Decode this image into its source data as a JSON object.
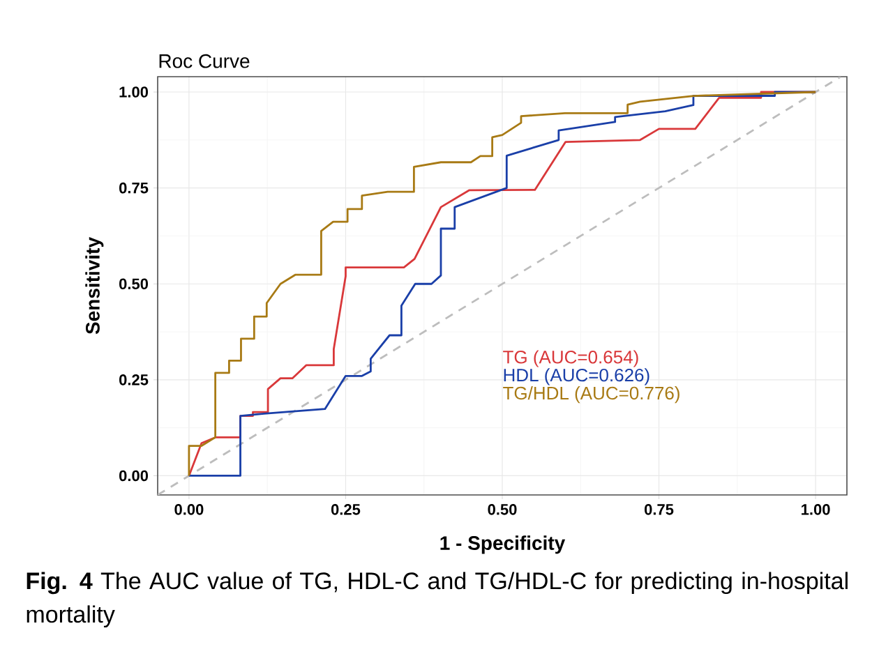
{
  "chart_data": {
    "type": "line",
    "title": "Roc Curve",
    "xlabel": "1 - Specificity",
    "ylabel": "Sensitivity",
    "annotations": [
      "**Fig. 4**  The AUC value of TG, HDL-C and TG/HDL-C for predicting in-hospital mortality"
    ],
    "xlim": [
      -0.05,
      1.05
    ],
    "ylim": [
      -0.05,
      1.04
    ],
    "xticks": [
      {
        "value": 0,
        "label": "0.00"
      },
      {
        "value": 0.25,
        "label": "0.25"
      },
      {
        "value": 0.5,
        "label": "0.50"
      },
      {
        "value": 0.75,
        "label": "0.75"
      },
      {
        "value": 1,
        "label": "1.00"
      }
    ],
    "yticks": [
      {
        "value": 0,
        "label": "0.00"
      },
      {
        "value": 0.25,
        "label": "0.25"
      },
      {
        "value": 0.5,
        "label": "0.50"
      },
      {
        "value": 0.75,
        "label": "0.75"
      },
      {
        "value": 1,
        "label": "1.00"
      }
    ],
    "grid": true,
    "legend": "bottom right",
    "series": [
      {
        "color": "#bdbdbd",
        "line_style": "dashed",
        "x": [
          -0.05,
          1.04
        ],
        "values": [
          -0.05,
          1.04
        ]
      },
      {
        "name": "TG (AUC=0.654)",
        "color": "#d9383a",
        "x": [
          0,
          0.02,
          0.042,
          0.082,
          0.082,
          0.102,
          0.102,
          0.126,
          0.126,
          0.146,
          0.165,
          0.187,
          0.231,
          0.231,
          0.25,
          0.25,
          0.343,
          0.36,
          0.402,
          0.447,
          0.552,
          0.601,
          0.72,
          0.75,
          0.808,
          0.846,
          0.913,
          0.913,
          1
        ],
        "values": [
          0,
          0.085,
          0.1,
          0.1,
          0.156,
          0.156,
          0.166,
          0.166,
          0.226,
          0.254,
          0.254,
          0.288,
          0.288,
          0.33,
          0.52,
          0.543,
          0.543,
          0.565,
          0.7,
          0.744,
          0.745,
          0.87,
          0.875,
          0.904,
          0.904,
          0.985,
          0.985,
          1,
          1
        ]
      },
      {
        "name": "HDL (AUC=0.626)",
        "color": "#1a3fa8",
        "x": [
          0,
          0.082,
          0.082,
          0.12,
          0.217,
          0.25,
          0.276,
          0.29,
          0.29,
          0.32,
          0.339,
          0.339,
          0.361,
          0.387,
          0.402,
          0.402,
          0.424,
          0.424,
          0.507,
          0.507,
          0.59,
          0.59,
          0.68,
          0.68,
          0.76,
          0.805,
          0.805,
          0.935,
          0.935,
          1
        ],
        "values": [
          0,
          0,
          0.156,
          0.162,
          0.174,
          0.26,
          0.26,
          0.272,
          0.305,
          0.366,
          0.366,
          0.443,
          0.5,
          0.5,
          0.522,
          0.644,
          0.644,
          0.7,
          0.75,
          0.834,
          0.875,
          0.9,
          0.922,
          0.935,
          0.95,
          0.966,
          0.99,
          0.99,
          1,
          1
        ]
      },
      {
        "name": "TG/HDL (AUC=0.776)",
        "color": "#a87a14",
        "x": [
          0,
          0,
          0.02,
          0.042,
          0.042,
          0.064,
          0.064,
          0.083,
          0.083,
          0.104,
          0.104,
          0.124,
          0.124,
          0.146,
          0.17,
          0.211,
          0.211,
          0.23,
          0.253,
          0.253,
          0.276,
          0.276,
          0.317,
          0.359,
          0.359,
          0.402,
          0.45,
          0.465,
          0.484,
          0.484,
          0.5,
          0.53,
          0.53,
          0.6,
          0.7,
          0.7,
          0.72,
          0.805,
          1
        ],
        "values": [
          0,
          0.078,
          0.078,
          0.1,
          0.268,
          0.268,
          0.3,
          0.3,
          0.357,
          0.357,
          0.415,
          0.415,
          0.45,
          0.5,
          0.524,
          0.524,
          0.638,
          0.662,
          0.662,
          0.695,
          0.695,
          0.73,
          0.74,
          0.74,
          0.805,
          0.817,
          0.817,
          0.833,
          0.833,
          0.882,
          0.888,
          0.92,
          0.937,
          0.945,
          0.945,
          0.967,
          0.975,
          0.99,
          1
        ]
      }
    ]
  }
}
